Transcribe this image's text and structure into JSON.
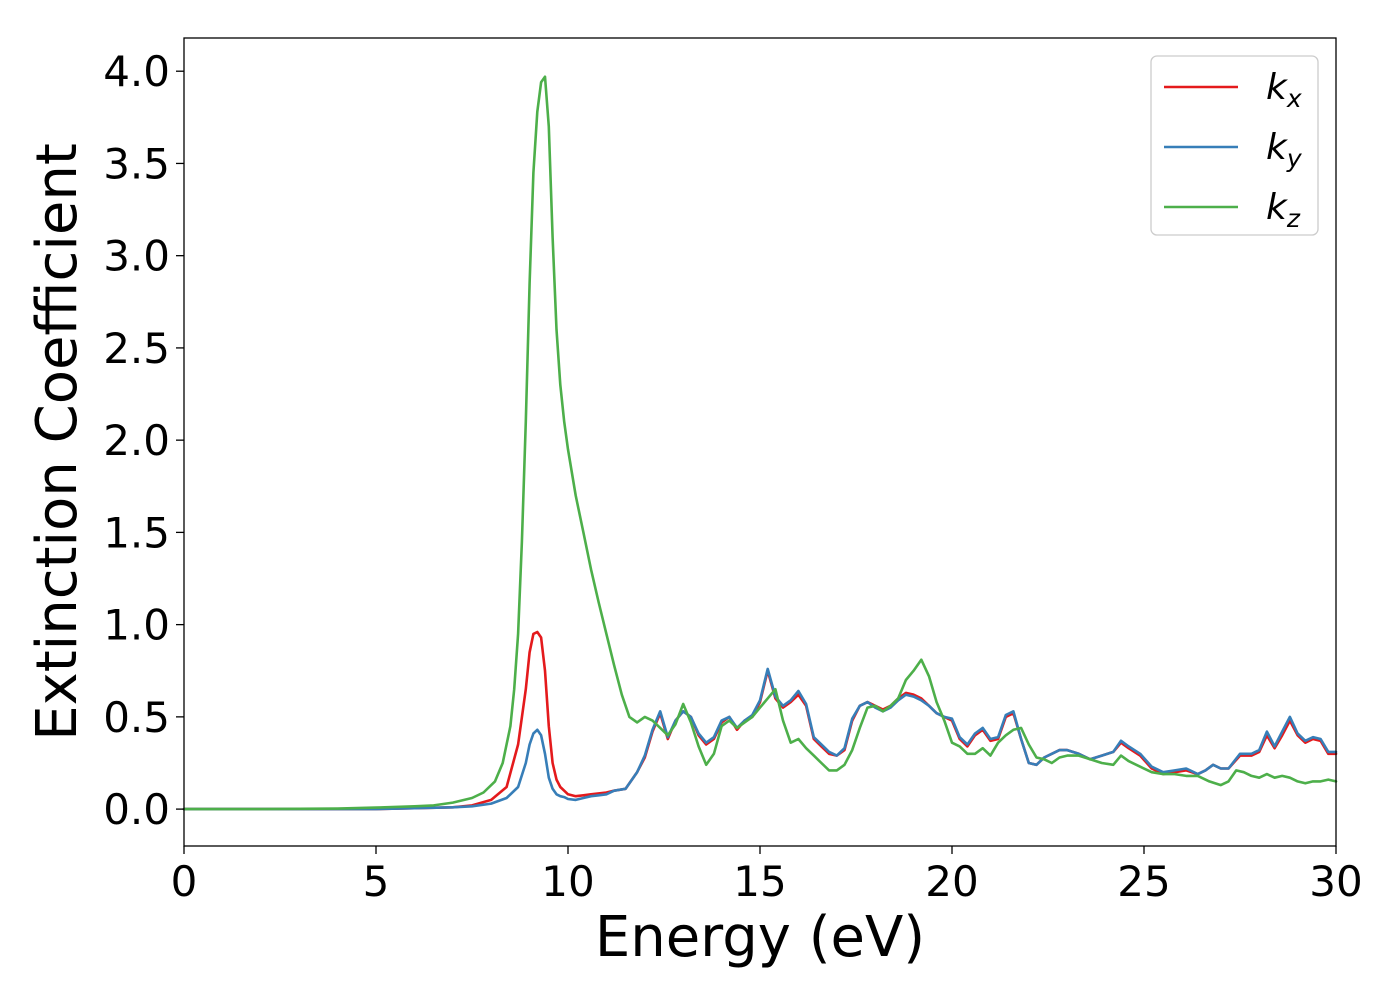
{
  "chart_data": {
    "type": "line",
    "title": "",
    "xlabel": "Energy (eV)",
    "ylabel": "Extinction Coefficient",
    "xlim": [
      0,
      30
    ],
    "ylim": [
      -0.2,
      4.18
    ],
    "xticks": [
      0,
      5,
      10,
      15,
      20,
      25,
      30
    ],
    "xtick_labels": [
      "0",
      "5",
      "10",
      "15",
      "20",
      "25",
      "30"
    ],
    "yticks": [
      0.0,
      0.5,
      1.0,
      1.5,
      2.0,
      2.5,
      3.0,
      3.5,
      4.0
    ],
    "ytick_labels": [
      "0.0",
      "0.5",
      "1.0",
      "1.5",
      "2.0",
      "2.5",
      "3.0",
      "3.5",
      "4.0"
    ],
    "grid": false,
    "legend_position": "top-right",
    "series": [
      {
        "name": "kx",
        "label_main": "k",
        "label_sub": "x",
        "color": "#e41a1c",
        "x": [
          0,
          2,
          4,
          5,
          6,
          7,
          7.5,
          8,
          8.4,
          8.7,
          8.9,
          9.0,
          9.1,
          9.2,
          9.3,
          9.4,
          9.5,
          9.6,
          9.7,
          9.8,
          9.9,
          10.0,
          10.2,
          10.4,
          10.6,
          10.8,
          11.0,
          11.2,
          11.5,
          11.8,
          12.0,
          12.2,
          12.4,
          12.6,
          12.8,
          13.0,
          13.2,
          13.4,
          13.6,
          13.8,
          14.0,
          14.2,
          14.4,
          14.6,
          14.8,
          15.0,
          15.2,
          15.4,
          15.6,
          15.8,
          16.0,
          16.2,
          16.4,
          16.6,
          16.8,
          17.0,
          17.2,
          17.4,
          17.6,
          17.8,
          18.0,
          18.2,
          18.4,
          18.6,
          18.8,
          19.0,
          19.2,
          19.4,
          19.6,
          19.8,
          20.0,
          20.2,
          20.4,
          20.6,
          20.8,
          21.0,
          21.2,
          21.4,
          21.6,
          21.8,
          22.0,
          22.2,
          22.4,
          22.6,
          22.8,
          23.0,
          23.3,
          23.6,
          23.9,
          24.2,
          24.4,
          24.6,
          24.9,
          25.2,
          25.5,
          25.8,
          26.1,
          26.4,
          26.6,
          26.8,
          27.0,
          27.2,
          27.5,
          27.8,
          28.0,
          28.2,
          28.4,
          28.6,
          28.8,
          29.0,
          29.2,
          29.4,
          29.6,
          29.8,
          30.0
        ],
        "y": [
          0.0,
          0.0,
          0.0,
          0.0,
          0.005,
          0.01,
          0.02,
          0.05,
          0.12,
          0.35,
          0.65,
          0.85,
          0.95,
          0.96,
          0.93,
          0.75,
          0.45,
          0.25,
          0.16,
          0.12,
          0.1,
          0.08,
          0.07,
          0.075,
          0.08,
          0.085,
          0.09,
          0.1,
          0.11,
          0.2,
          0.28,
          0.42,
          0.52,
          0.38,
          0.48,
          0.53,
          0.5,
          0.4,
          0.35,
          0.38,
          0.47,
          0.5,
          0.43,
          0.48,
          0.5,
          0.58,
          0.75,
          0.6,
          0.55,
          0.58,
          0.62,
          0.56,
          0.38,
          0.34,
          0.3,
          0.29,
          0.32,
          0.48,
          0.56,
          0.58,
          0.56,
          0.54,
          0.56,
          0.6,
          0.63,
          0.62,
          0.6,
          0.56,
          0.52,
          0.5,
          0.48,
          0.38,
          0.34,
          0.4,
          0.43,
          0.37,
          0.38,
          0.5,
          0.52,
          0.38,
          0.25,
          0.24,
          0.28,
          0.3,
          0.32,
          0.32,
          0.3,
          0.27,
          0.29,
          0.31,
          0.36,
          0.33,
          0.29,
          0.22,
          0.19,
          0.2,
          0.21,
          0.19,
          0.21,
          0.24,
          0.22,
          0.22,
          0.29,
          0.29,
          0.31,
          0.4,
          0.33,
          0.4,
          0.48,
          0.4,
          0.36,
          0.38,
          0.37,
          0.3,
          0.3
        ]
      },
      {
        "name": "ky",
        "label_main": "k",
        "label_sub": "y",
        "color": "#377eb8",
        "x": [
          0,
          2,
          4,
          5,
          6,
          7,
          7.5,
          8,
          8.4,
          8.7,
          8.9,
          9.0,
          9.1,
          9.2,
          9.3,
          9.4,
          9.5,
          9.6,
          9.7,
          9.8,
          9.9,
          10.0,
          10.2,
          10.4,
          10.6,
          10.8,
          11.0,
          11.2,
          11.5,
          11.8,
          12.0,
          12.2,
          12.4,
          12.6,
          12.8,
          13.0,
          13.2,
          13.4,
          13.6,
          13.8,
          14.0,
          14.2,
          14.4,
          14.6,
          14.8,
          15.0,
          15.2,
          15.4,
          15.6,
          15.8,
          16.0,
          16.2,
          16.4,
          16.6,
          16.8,
          17.0,
          17.2,
          17.4,
          17.6,
          17.8,
          18.0,
          18.2,
          18.4,
          18.6,
          18.8,
          19.0,
          19.2,
          19.4,
          19.6,
          19.8,
          20.0,
          20.2,
          20.4,
          20.6,
          20.8,
          21.0,
          21.2,
          21.4,
          21.6,
          21.8,
          22.0,
          22.2,
          22.4,
          22.6,
          22.8,
          23.0,
          23.3,
          23.6,
          23.9,
          24.2,
          24.4,
          24.6,
          24.9,
          25.2,
          25.5,
          25.8,
          26.1,
          26.4,
          26.6,
          26.8,
          27.0,
          27.2,
          27.5,
          27.8,
          28.0,
          28.2,
          28.4,
          28.6,
          28.8,
          29.0,
          29.2,
          29.4,
          29.6,
          29.8,
          30.0
        ],
        "y": [
          0.0,
          0.0,
          0.0,
          0.0,
          0.005,
          0.01,
          0.015,
          0.03,
          0.06,
          0.12,
          0.25,
          0.35,
          0.41,
          0.43,
          0.4,
          0.3,
          0.17,
          0.11,
          0.08,
          0.07,
          0.065,
          0.055,
          0.05,
          0.06,
          0.07,
          0.075,
          0.08,
          0.1,
          0.11,
          0.2,
          0.29,
          0.43,
          0.53,
          0.39,
          0.48,
          0.53,
          0.5,
          0.41,
          0.36,
          0.39,
          0.48,
          0.5,
          0.44,
          0.48,
          0.51,
          0.59,
          0.76,
          0.61,
          0.56,
          0.59,
          0.64,
          0.57,
          0.39,
          0.35,
          0.31,
          0.29,
          0.33,
          0.49,
          0.56,
          0.58,
          0.55,
          0.53,
          0.55,
          0.59,
          0.62,
          0.61,
          0.59,
          0.56,
          0.52,
          0.5,
          0.49,
          0.39,
          0.35,
          0.41,
          0.44,
          0.38,
          0.39,
          0.51,
          0.53,
          0.38,
          0.25,
          0.24,
          0.28,
          0.3,
          0.32,
          0.32,
          0.3,
          0.27,
          0.29,
          0.31,
          0.37,
          0.34,
          0.3,
          0.23,
          0.2,
          0.21,
          0.22,
          0.19,
          0.21,
          0.24,
          0.22,
          0.22,
          0.3,
          0.3,
          0.32,
          0.42,
          0.34,
          0.42,
          0.5,
          0.41,
          0.37,
          0.39,
          0.38,
          0.31,
          0.31
        ]
      },
      {
        "name": "kz",
        "label_main": "k",
        "label_sub": "z",
        "color": "#4daf4a",
        "x": [
          0,
          2,
          4,
          5,
          6,
          6.5,
          7,
          7.5,
          7.8,
          8.1,
          8.3,
          8.5,
          8.6,
          8.7,
          8.8,
          8.9,
          9.0,
          9.1,
          9.2,
          9.3,
          9.4,
          9.5,
          9.6,
          9.7,
          9.8,
          9.9,
          10.0,
          10.2,
          10.4,
          10.6,
          10.8,
          11.0,
          11.2,
          11.4,
          11.6,
          11.8,
          12.0,
          12.2,
          12.4,
          12.6,
          12.8,
          13.0,
          13.2,
          13.4,
          13.6,
          13.8,
          14.0,
          14.2,
          14.4,
          14.6,
          14.8,
          15.0,
          15.2,
          15.4,
          15.6,
          15.8,
          16.0,
          16.2,
          16.4,
          16.6,
          16.8,
          17.0,
          17.2,
          17.4,
          17.6,
          17.8,
          18.0,
          18.2,
          18.4,
          18.6,
          18.8,
          19.0,
          19.2,
          19.4,
          19.6,
          19.8,
          20.0,
          20.2,
          20.4,
          20.6,
          20.8,
          21.0,
          21.2,
          21.4,
          21.6,
          21.8,
          22.0,
          22.2,
          22.4,
          22.6,
          22.8,
          23.0,
          23.3,
          23.6,
          23.9,
          24.2,
          24.4,
          24.6,
          24.9,
          25.2,
          25.5,
          25.8,
          26.1,
          26.4,
          26.7,
          27.0,
          27.2,
          27.4,
          27.6,
          27.8,
          28.0,
          28.2,
          28.4,
          28.6,
          28.8,
          29.0,
          29.2,
          29.4,
          29.6,
          29.8,
          30.0
        ],
        "y": [
          0.0,
          0.0,
          0.003,
          0.008,
          0.015,
          0.02,
          0.035,
          0.06,
          0.09,
          0.15,
          0.25,
          0.45,
          0.65,
          0.95,
          1.45,
          2.1,
          2.85,
          3.45,
          3.78,
          3.94,
          3.97,
          3.7,
          3.1,
          2.6,
          2.3,
          2.1,
          1.95,
          1.7,
          1.5,
          1.3,
          1.12,
          0.95,
          0.78,
          0.62,
          0.5,
          0.47,
          0.5,
          0.48,
          0.44,
          0.4,
          0.46,
          0.57,
          0.47,
          0.34,
          0.24,
          0.3,
          0.45,
          0.48,
          0.44,
          0.47,
          0.5,
          0.55,
          0.6,
          0.65,
          0.48,
          0.36,
          0.38,
          0.33,
          0.29,
          0.25,
          0.21,
          0.21,
          0.24,
          0.32,
          0.44,
          0.55,
          0.56,
          0.53,
          0.56,
          0.6,
          0.7,
          0.75,
          0.81,
          0.72,
          0.58,
          0.48,
          0.36,
          0.34,
          0.3,
          0.3,
          0.33,
          0.29,
          0.36,
          0.4,
          0.43,
          0.44,
          0.35,
          0.28,
          0.27,
          0.25,
          0.28,
          0.29,
          0.29,
          0.27,
          0.25,
          0.24,
          0.29,
          0.26,
          0.23,
          0.2,
          0.19,
          0.19,
          0.18,
          0.18,
          0.15,
          0.13,
          0.15,
          0.21,
          0.2,
          0.18,
          0.17,
          0.19,
          0.17,
          0.18,
          0.17,
          0.15,
          0.14,
          0.15,
          0.15,
          0.16,
          0.15
        ]
      }
    ]
  }
}
